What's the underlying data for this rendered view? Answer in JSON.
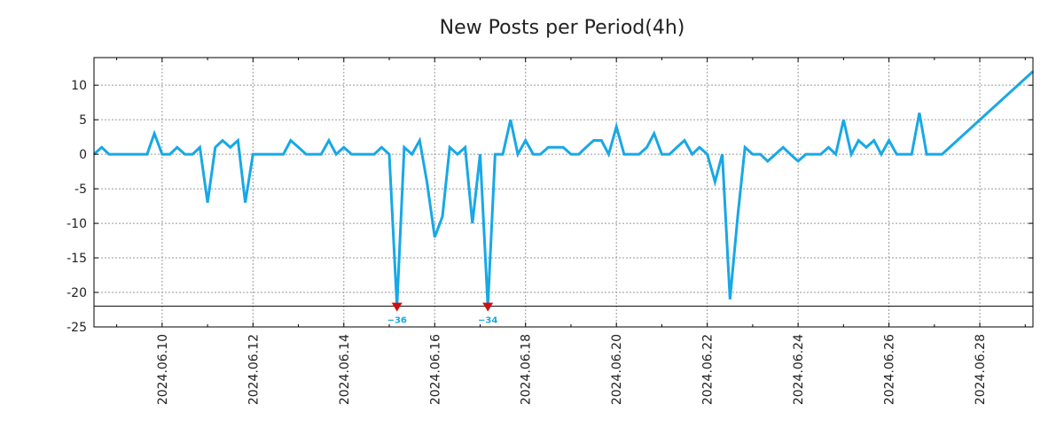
{
  "chart_data": {
    "type": "line",
    "title": "New Posts per Period(4h)",
    "xlabel": "",
    "ylabel": "",
    "x_range": [
      "2024.06.08 12:00",
      "2024.06.29 04:00"
    ],
    "xlim_days": [
      0,
      20.67
    ],
    "ylim": [
      -25,
      14
    ],
    "y_ticks": [
      -25,
      -20,
      -15,
      -10,
      -5,
      0,
      5,
      10
    ],
    "y_tick_labels": [
      "-25",
      "-20",
      "-15",
      "-10",
      "-5",
      "0",
      "5",
      "10"
    ],
    "x_tick_days": [
      1.5,
      3.5,
      5.5,
      7.5,
      9.5,
      11.5,
      13.5,
      15.5,
      17.5,
      19.5
    ],
    "x_tick_labels": [
      "2024.06.10",
      "2024.06.12",
      "2024.06.14",
      "2024.06.16",
      "2024.06.18",
      "2024.06.20",
      "2024.06.22",
      "2024.06.24",
      "2024.06.26",
      "2024.06.28"
    ],
    "grid": true,
    "clip_line_value": -22,
    "series": [
      {
        "name": "New Posts",
        "color": "#17a8e6",
        "points": [
          [
            0.0,
            0
          ],
          [
            0.17,
            1
          ],
          [
            0.33,
            0
          ],
          [
            0.5,
            0
          ],
          [
            0.67,
            0
          ],
          [
            0.83,
            0
          ],
          [
            1.0,
            0
          ],
          [
            1.17,
            0
          ],
          [
            1.33,
            3
          ],
          [
            1.5,
            0
          ],
          [
            1.67,
            0
          ],
          [
            1.83,
            1
          ],
          [
            2.0,
            0
          ],
          [
            2.17,
            0
          ],
          [
            2.33,
            1
          ],
          [
            2.5,
            -7
          ],
          [
            2.67,
            1
          ],
          [
            2.83,
            2
          ],
          [
            3.0,
            1
          ],
          [
            3.17,
            2
          ],
          [
            3.33,
            -7
          ],
          [
            3.5,
            0
          ],
          [
            3.67,
            0
          ],
          [
            3.83,
            0
          ],
          [
            4.0,
            0
          ],
          [
            4.17,
            0
          ],
          [
            4.33,
            2
          ],
          [
            4.5,
            1
          ],
          [
            4.67,
            0
          ],
          [
            4.83,
            0
          ],
          [
            5.0,
            0
          ],
          [
            5.17,
            2
          ],
          [
            5.33,
            0
          ],
          [
            5.5,
            1
          ],
          [
            5.67,
            0
          ],
          [
            5.83,
            0
          ],
          [
            6.0,
            0
          ],
          [
            6.17,
            0
          ],
          [
            6.33,
            1
          ],
          [
            6.5,
            0
          ],
          [
            6.67,
            -36
          ],
          [
            6.83,
            1
          ],
          [
            7.0,
            0
          ],
          [
            7.17,
            2
          ],
          [
            7.33,
            -4
          ],
          [
            7.5,
            -12
          ],
          [
            7.67,
            -9
          ],
          [
            7.83,
            1
          ],
          [
            8.0,
            0
          ],
          [
            8.17,
            1
          ],
          [
            8.33,
            -10
          ],
          [
            8.5,
            0
          ],
          [
            8.67,
            -34
          ],
          [
            8.83,
            0
          ],
          [
            9.0,
            0
          ],
          [
            9.17,
            5
          ],
          [
            9.33,
            0
          ],
          [
            9.5,
            2
          ],
          [
            9.67,
            0
          ],
          [
            9.83,
            0
          ],
          [
            10.0,
            1
          ],
          [
            10.17,
            1
          ],
          [
            10.33,
            1
          ],
          [
            10.5,
            0
          ],
          [
            10.67,
            0
          ],
          [
            10.83,
            1
          ],
          [
            11.0,
            2
          ],
          [
            11.17,
            2
          ],
          [
            11.33,
            0
          ],
          [
            11.5,
            4
          ],
          [
            11.67,
            0
          ],
          [
            11.83,
            0
          ],
          [
            12.0,
            0
          ],
          [
            12.17,
            1
          ],
          [
            12.33,
            3
          ],
          [
            12.5,
            0
          ],
          [
            12.67,
            0
          ],
          [
            12.83,
            1
          ],
          [
            13.0,
            2
          ],
          [
            13.17,
            0
          ],
          [
            13.33,
            1
          ],
          [
            13.5,
            0
          ],
          [
            13.67,
            -4
          ],
          [
            13.83,
            0
          ],
          [
            14.0,
            -21
          ],
          [
            14.17,
            -9
          ],
          [
            14.33,
            1
          ],
          [
            14.5,
            0
          ],
          [
            14.67,
            0
          ],
          [
            14.83,
            -1
          ],
          [
            15.0,
            0
          ],
          [
            15.17,
            1
          ],
          [
            15.33,
            0
          ],
          [
            15.5,
            -1
          ],
          [
            15.67,
            0
          ],
          [
            15.83,
            0
          ],
          [
            16.0,
            0
          ],
          [
            16.17,
            1
          ],
          [
            16.33,
            0
          ],
          [
            16.5,
            5
          ],
          [
            16.67,
            0
          ],
          [
            16.83,
            2
          ],
          [
            17.0,
            1
          ],
          [
            17.17,
            2
          ],
          [
            17.33,
            0
          ],
          [
            17.5,
            2
          ],
          [
            17.67,
            0
          ],
          [
            17.83,
            0
          ],
          [
            18.0,
            0
          ],
          [
            18.17,
            6
          ],
          [
            18.33,
            0
          ],
          [
            18.5,
            0
          ],
          [
            18.67,
            0
          ],
          [
            20.67,
            12
          ]
        ]
      }
    ],
    "clipped_annotations": [
      {
        "day": 6.67,
        "value": -36,
        "label": "−36"
      },
      {
        "day": 8.67,
        "value": -34,
        "label": "−34"
      }
    ]
  }
}
